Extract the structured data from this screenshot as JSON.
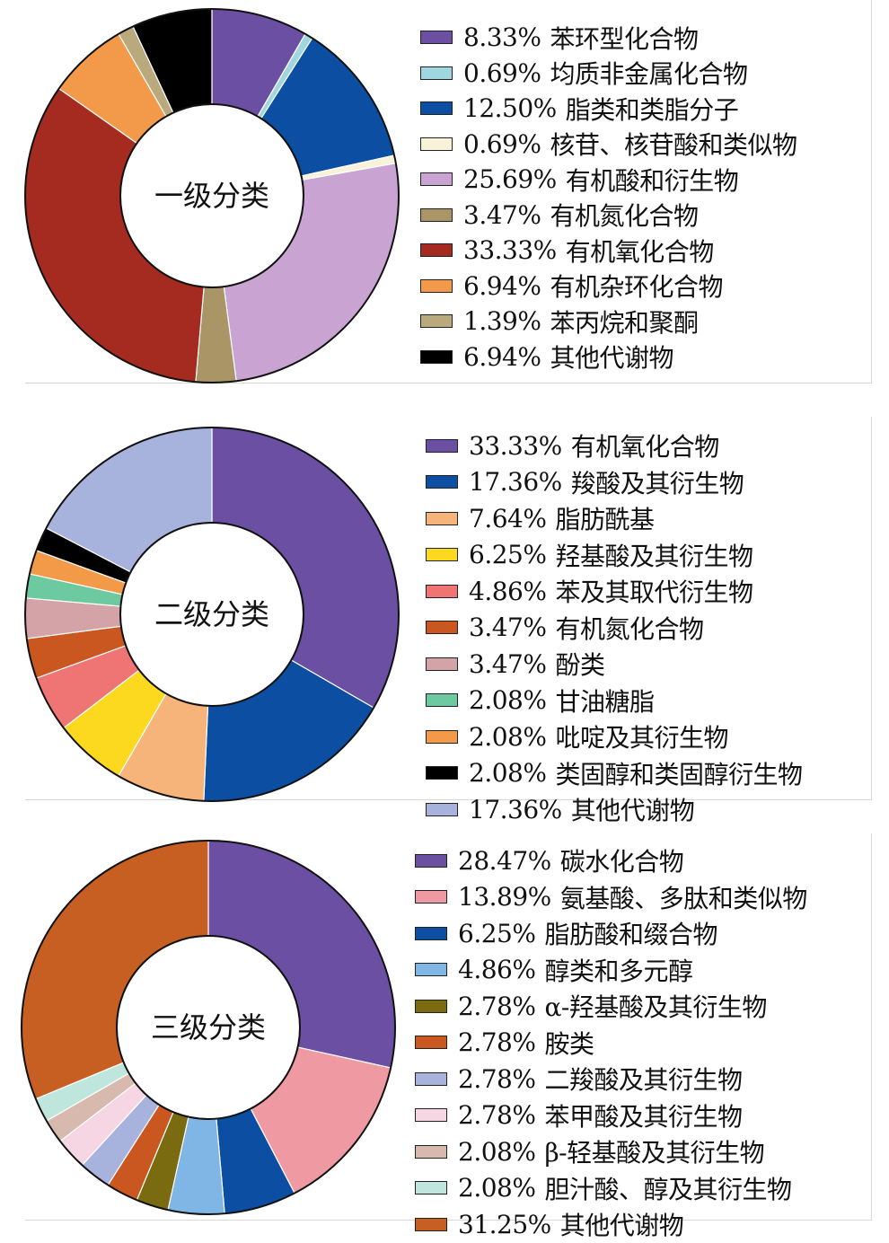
{
  "chart_data": [
    {
      "type": "pie",
      "title": "一级分类",
      "slices": [
        {
          "value": 8.33,
          "label": "8.33%",
          "name": "苯环型化合物",
          "color": "#6a4fa3"
        },
        {
          "value": 0.69,
          "label": "0.69%",
          "name": "均质非金属化合物",
          "color": "#9fd6e0"
        },
        {
          "value": 12.5,
          "label": "12.50%",
          "name": "脂类和类脂分子",
          "color": "#0b4ea2"
        },
        {
          "value": 0.69,
          "label": "0.69%",
          "name": "核苷、核苷酸和类似物",
          "color": "#f8f3d8"
        },
        {
          "value": 25.69,
          "label": "25.69%",
          "name": "有机酸和衍生物",
          "color": "#c9a3d1"
        },
        {
          "value": 3.47,
          "label": "3.47%",
          "name": "有机氮化合物",
          "color": "#a99566"
        },
        {
          "value": 33.33,
          "label": "33.33%",
          "name": "有机氧化合物",
          "color": "#a52a1f"
        },
        {
          "value": 6.94,
          "label": "6.94%",
          "name": "有机杂环化合物",
          "color": "#f29a4a"
        },
        {
          "value": 1.39,
          "label": "1.39%",
          "name": "苯丙烷和聚酮",
          "color": "#b9a97c"
        },
        {
          "value": 6.94,
          "label": "6.94%",
          "name": "其他代谢物",
          "color": "#000000"
        }
      ]
    },
    {
      "type": "pie",
      "title": "二级分类",
      "slices": [
        {
          "value": 33.33,
          "label": "33.33%",
          "name": "有机氧化合物",
          "color": "#6a4fa3"
        },
        {
          "value": 17.36,
          "label": "17.36%",
          "name": "羧酸及其衍生物",
          "color": "#0b4ea2"
        },
        {
          "value": 7.64,
          "label": "7.64%",
          "name": "脂肪酰基",
          "color": "#f6b37a"
        },
        {
          "value": 6.25,
          "label": "6.25%",
          "name": "羟基酸及其衍生物",
          "color": "#fcd81e"
        },
        {
          "value": 4.86,
          "label": "4.86%",
          "name": "苯及其取代衍生物",
          "color": "#ef7474"
        },
        {
          "value": 3.47,
          "label": "3.47%",
          "name": "有机氮化合物",
          "color": "#c9571f"
        },
        {
          "value": 3.47,
          "label": "3.47%",
          "name": "酚类",
          "color": "#d4a3a8"
        },
        {
          "value": 2.08,
          "label": "2.08%",
          "name": "甘油糖脂",
          "color": "#6cc9a0"
        },
        {
          "value": 2.08,
          "label": "2.08%",
          "name": "吡啶及其衍生物",
          "color": "#f39a48"
        },
        {
          "value": 2.08,
          "label": "2.08%",
          "name": "类固醇和类固醇衍生物",
          "color": "#000000"
        },
        {
          "value": 17.36,
          "label": "17.36%",
          "name": "其他代谢物",
          "color": "#a8b3dd"
        }
      ]
    },
    {
      "type": "pie",
      "title": "三级分类",
      "slices": [
        {
          "value": 28.47,
          "label": "28.47%",
          "name": "碳水化合物",
          "color": "#6a4fa3"
        },
        {
          "value": 13.89,
          "label": "13.89%",
          "name": "氨基酸、多肽和类似物",
          "color": "#ef9aa2"
        },
        {
          "value": 6.25,
          "label": "6.25%",
          "name": "脂肪酸和缀合物",
          "color": "#0b4ea2"
        },
        {
          "value": 4.86,
          "label": "4.86%",
          "name": "醇类和多元醇",
          "color": "#7fb6e6"
        },
        {
          "value": 2.78,
          "label": "2.78%",
          "name": "α-羟基酸及其衍生物",
          "color": "#7a6a10"
        },
        {
          "value": 2.78,
          "label": "2.78%",
          "name": "胺类",
          "color": "#c9571f"
        },
        {
          "value": 2.78,
          "label": "2.78%",
          "name": "二羧酸及其衍生物",
          "color": "#a8b3dd"
        },
        {
          "value": 2.78,
          "label": "2.78%",
          "name": "苯甲酸及其衍生物",
          "color": "#f6d6e2"
        },
        {
          "value": 2.08,
          "label": "2.08%",
          "name": "β-轻基酸及其衍生物",
          "color": "#d8b9ad"
        },
        {
          "value": 2.08,
          "label": "2.08%",
          "name": "胆汁酸、醇及其衍生物",
          "color": "#bfe6dc"
        },
        {
          "value": 31.25,
          "label": "31.25%",
          "name": "其他代谢物",
          "color": "#c75f22"
        }
      ]
    }
  ]
}
